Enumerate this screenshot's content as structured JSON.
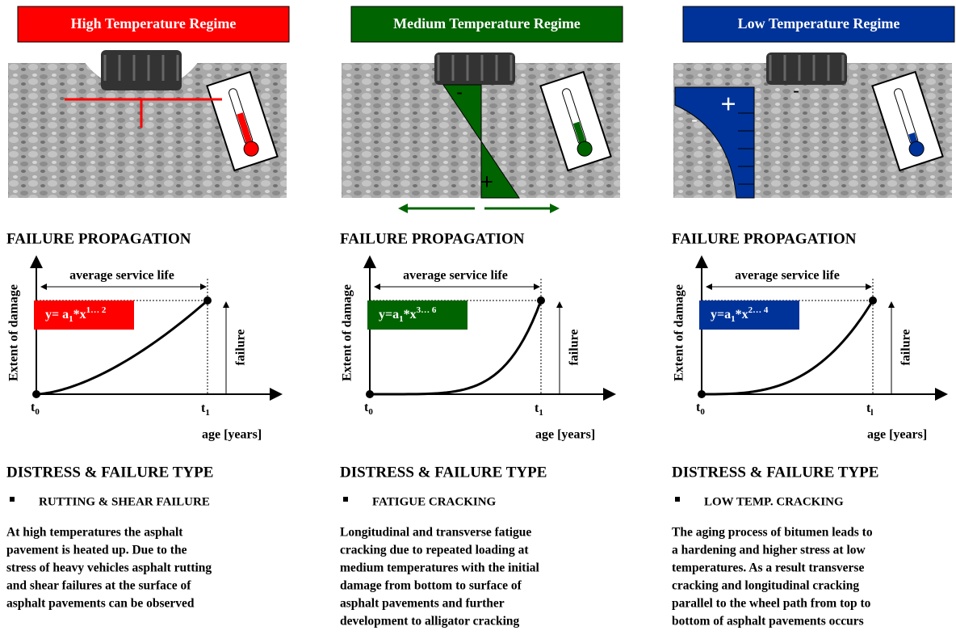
{
  "columns": [
    {
      "title": "High Temperature Regime",
      "color": "#ff0000",
      "propagation_heading": "FAILURE PROPAGATION",
      "chart": {
        "y_label": "Extent of damage",
        "x_label": "age [years]",
        "span_label": "average service life",
        "failure_label": "failure",
        "formula": {
          "base": "y= a",
          "sub": "1",
          "mid": "*x",
          "sup": "1… 2"
        },
        "t_start": {
          "base": "t",
          "sub": "0"
        },
        "t_end": {
          "base": "t",
          "sub": "1"
        }
      },
      "distress_heading": "DISTRESS & FAILURE TYPE",
      "bullet": "RUTTING & SHEAR FAILURE",
      "description": [
        "At high temperatures the asphalt",
        "pavement is heated up.  Due to the",
        "stress of heavy vehicles asphalt rutting",
        "and shear failures at the surface of",
        "asphalt pavements can be observed"
      ]
    },
    {
      "title": "Medium Temperature Regime",
      "color": "#006400",
      "stress_signs": [
        "-",
        "+"
      ],
      "propagation_heading": "FAILURE PROPAGATION",
      "chart": {
        "y_label": "Extent of damage",
        "x_label": "age [years]",
        "span_label": "average service life",
        "failure_label": "failure",
        "formula": {
          "base": "y=a",
          "sub": "1",
          "mid": "*x",
          "sup": "3… 6"
        },
        "t_start": {
          "base": "t",
          "sub": "0"
        },
        "t_end": {
          "base": "t",
          "sub": "1"
        }
      },
      "distress_heading": "DISTRESS & FAILURE TYPE",
      "bullet": "FATIGUE CRACKING",
      "description": [
        "Longitudinal and transverse  fatigue",
        "cracking due to repeated loading at",
        "medium temperatures with the initial",
        "damage from bottom to surface of",
        "asphalt pavements and further",
        "development to alligator cracking"
      ]
    },
    {
      "title": "Low Temperature Regime",
      "color": "#003399",
      "stress_signs": [
        "+",
        "-",
        "-"
      ],
      "propagation_heading": "FAILURE PROPAGATION",
      "chart": {
        "y_label": "Extent of damage",
        "x_label": "age [years]",
        "span_label": "average service life",
        "failure_label": "failure",
        "formula": {
          "base": "y=a",
          "sub": "1",
          "mid": "*x",
          "sup": "2… 4"
        },
        "t_start": {
          "base": "t",
          "sub": "0"
        },
        "t_end": {
          "base": "t",
          "sub": "l"
        }
      },
      "distress_heading": "DISTRESS & FAILURE TYPE",
      "bullet": "LOW TEMP. CRACKING",
      "description": [
        "The aging process of bitumen leads to",
        "a hardening and higher stress at low",
        "temperatures. As a result transverse",
        "cracking and longitudinal cracking",
        "parallel to the wheel path from top to",
        "bottom of asphalt pavements occurs"
      ]
    }
  ]
}
